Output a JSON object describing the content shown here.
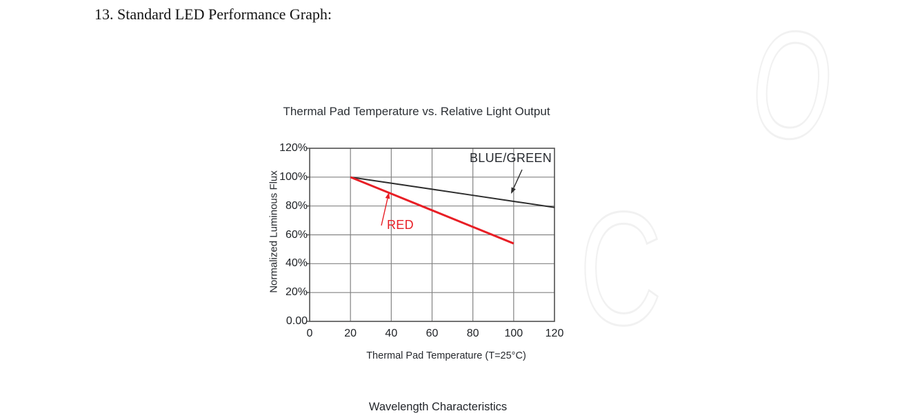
{
  "page": {
    "heading": "13. Standard LED Performance Graph:",
    "section_footer": "Wavelength Characteristics",
    "watermark_letters": {
      "top": "O",
      "middle": "C"
    }
  },
  "chart": {
    "title": "Thermal Pad Temperature vs. Relative Light Output",
    "x_axis_title": "Thermal Pad Temperature (T=25°C)",
    "y_axis_title": "Normalized Luminous Flux",
    "y_tick_labels": [
      "120%",
      "100%",
      "80%",
      "60%",
      "40%",
      "20%",
      "0.00"
    ],
    "x_tick_labels": [
      "0",
      "20",
      "40",
      "60",
      "80",
      "100",
      "120"
    ],
    "annotations": {
      "blue_green": "BLUE/GREEN",
      "red": "RED"
    },
    "colors": {
      "blue_green_line": "#2d2d2d",
      "red_line": "#e81e25",
      "grid": "#828282",
      "axis": "#4f4f4f",
      "watermark": "#f1f1f1"
    }
  },
  "chart_data": {
    "type": "line",
    "title": "Thermal Pad Temperature vs. Relative Light Output",
    "xlabel": "Thermal Pad Temperature (T=25°C)",
    "ylabel": "Normalized Luminous Flux",
    "y_unit": "%",
    "xlim": [
      0,
      120
    ],
    "ylim": [
      0,
      120
    ],
    "x_ticks": [
      0,
      20,
      40,
      60,
      80,
      100,
      120
    ],
    "y_ticks": [
      120,
      100,
      80,
      60,
      40,
      20,
      0
    ],
    "grid": true,
    "legend_position": "inline-annotations",
    "series": [
      {
        "name": "BLUE/GREEN",
        "color": "#2d2d2d",
        "points": [
          [
            20,
            100
          ],
          [
            40,
            95.8
          ],
          [
            60,
            91.6
          ],
          [
            80,
            87.4
          ],
          [
            100,
            83.2
          ],
          [
            120,
            79
          ]
        ]
      },
      {
        "name": "RED",
        "color": "#e81e25",
        "points": [
          [
            20,
            100
          ],
          [
            40,
            88.5
          ],
          [
            60,
            77
          ],
          [
            80,
            65.5
          ],
          [
            100,
            54
          ]
        ]
      }
    ]
  }
}
